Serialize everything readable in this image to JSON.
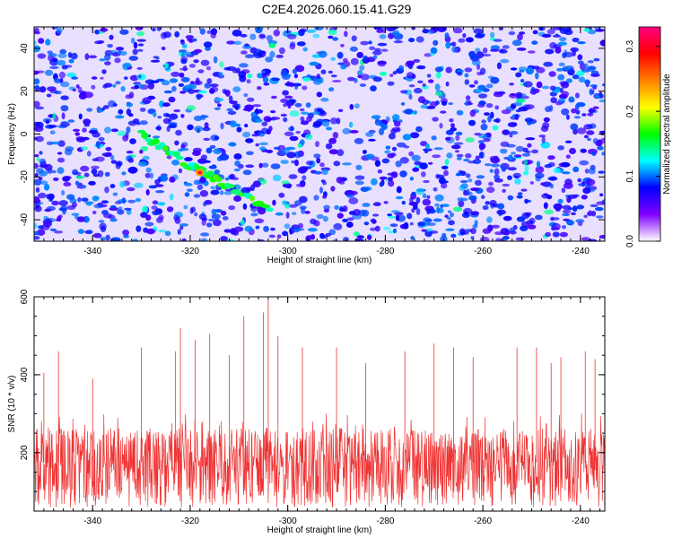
{
  "title": "C2E4.2026.060.15.41.G29",
  "chart_data": [
    {
      "type": "heatmap",
      "xlabel": "Height of straight line (km)",
      "ylabel": "Frequency (Hz)",
      "xlim": [
        -352,
        -235
      ],
      "ylim": [
        -50,
        50
      ],
      "x_ticks": [
        -340,
        -320,
        -300,
        -280,
        -260,
        -240
      ],
      "y_ticks": [
        -40,
        -20,
        0,
        20,
        40
      ],
      "colorbar": {
        "label": "Normalized spectral amplitude",
        "range": [
          0,
          0.33
        ],
        "ticks": [
          0,
          0.1,
          0.2,
          0.3
        ],
        "colors": [
          "#ffffff",
          "#8000ff",
          "#0000ff",
          "#00ffff",
          "#00ff00",
          "#ffff00",
          "#ff8000",
          "#ff0000",
          "#ff0080"
        ]
      },
      "ridge": {
        "description_points": [
          [
            -330,
            0
          ],
          [
            -325,
            -7
          ],
          [
            -320,
            -15
          ],
          [
            -317,
            -18
          ],
          [
            -313,
            -24
          ],
          [
            -308,
            -30
          ],
          [
            -303,
            -36
          ]
        ],
        "peak": {
          "x": -318,
          "y": -18,
          "value": 0.33
        }
      },
      "background_level": [
        0.02,
        0.12
      ]
    },
    {
      "type": "line",
      "xlabel": "Height of straight line (km)",
      "ylabel": "SNR (10 * v/v)",
      "xlim": [
        -352,
        -235
      ],
      "ylim": [
        50,
        600
      ],
      "x_ticks": [
        -340,
        -320,
        -300,
        -280,
        -260,
        -240
      ],
      "y_ticks": [
        200,
        400,
        600
      ],
      "series": [
        {
          "color": "#ee3333",
          "baseline": 175,
          "spread": [
            60,
            300
          ],
          "spikes": [
            [
              -350,
              405
            ],
            [
              -347,
              460
            ],
            [
              -340,
              390
            ],
            [
              -330,
              470
            ],
            [
              -323,
              460
            ],
            [
              -322,
              520
            ],
            [
              -319,
              490
            ],
            [
              -316,
              505
            ],
            [
              -312,
              450
            ],
            [
              -309,
              550
            ],
            [
              -305,
              560
            ],
            [
              -304,
              600
            ],
            [
              -302,
              500
            ],
            [
              -297,
              470
            ],
            [
              -290,
              470
            ],
            [
              -284,
              430
            ],
            [
              -276,
              460
            ],
            [
              -270,
              480
            ],
            [
              -266,
              470
            ],
            [
              -262,
              445
            ],
            [
              -253,
              470
            ],
            [
              -249,
              470
            ],
            [
              -246,
              430
            ],
            [
              -244,
              445
            ],
            [
              -239,
              460
            ],
            [
              -237,
              440
            ]
          ]
        }
      ]
    }
  ]
}
